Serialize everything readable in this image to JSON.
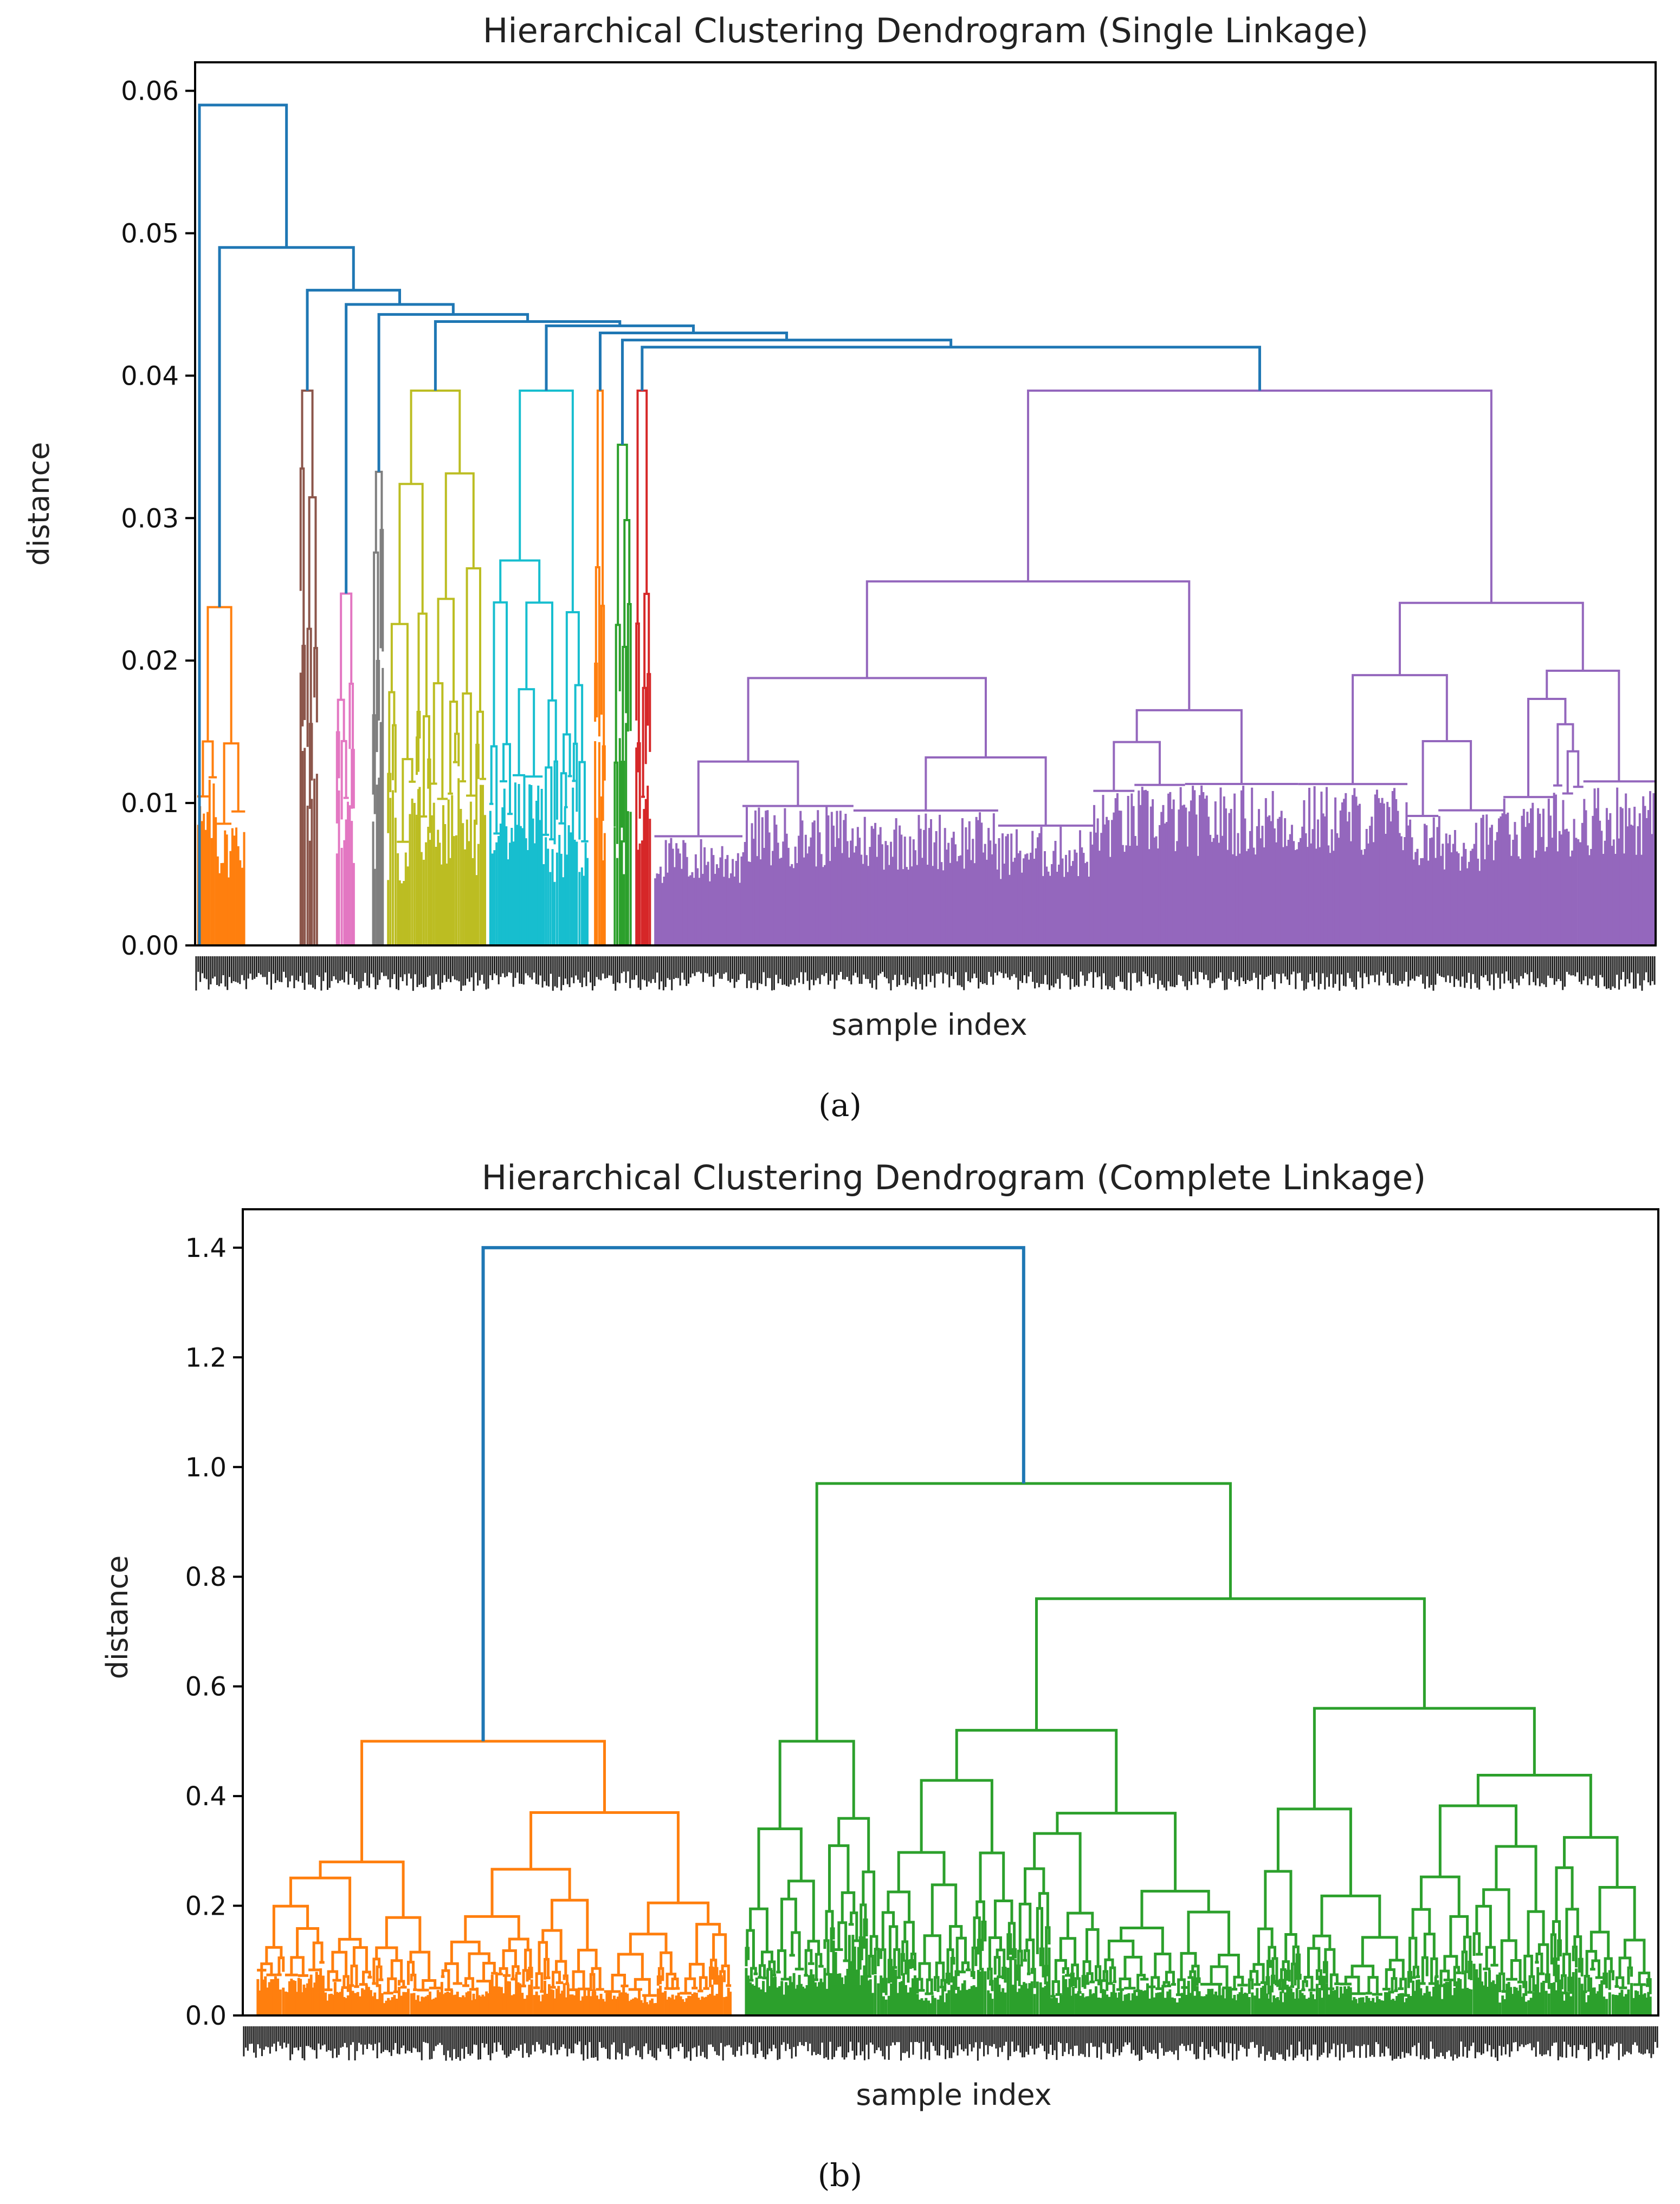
{
  "chart_data": [
    {
      "type": "dendrogram",
      "title": "Hierarchical Clustering Dendrogram (Single Linkage)",
      "xlabel": "sample index",
      "ylabel": "distance",
      "ylim": [
        0,
        0.062
      ],
      "yticks": [
        "0.00",
        "0.01",
        "0.02",
        "0.03",
        "0.04",
        "0.05",
        "0.06"
      ],
      "caption": "(a)",
      "root_height": 0.059,
      "clusters": [
        {
          "color": "#ff7f0e",
          "label": "orange",
          "merge_height": 0.025,
          "leaf_range": [
            0.0,
            0.035
          ]
        },
        {
          "color": "#8c564b",
          "label": "brown",
          "merge_height": 0.041,
          "leaf_range": [
            0.07,
            0.085
          ]
        },
        {
          "color": "#e377c2",
          "label": "pink",
          "merge_height": 0.026,
          "leaf_range": [
            0.095,
            0.11
          ]
        },
        {
          "color": "#7f7f7f",
          "label": "gray",
          "merge_height": 0.035,
          "leaf_range": [
            0.12,
            0.13
          ]
        },
        {
          "color": "#bcbd22",
          "label": "olive",
          "merge_height": 0.041,
          "leaf_range": [
            0.13,
            0.2
          ]
        },
        {
          "color": "#17becf",
          "label": "cyan",
          "merge_height": 0.041,
          "leaf_range": [
            0.2,
            0.27
          ]
        },
        {
          "color": "#ff7f0e",
          "label": "orange-small",
          "merge_height": 0.041,
          "leaf_range": [
            0.272,
            0.282
          ]
        },
        {
          "color": "#2ca02c",
          "label": "green",
          "merge_height": 0.037,
          "leaf_range": [
            0.285,
            0.3
          ]
        },
        {
          "color": "#d62728",
          "label": "red",
          "merge_height": 0.041,
          "leaf_range": [
            0.3,
            0.313
          ]
        },
        {
          "color": "#9467bd",
          "label": "purple",
          "merge_height": 0.041,
          "leaf_range": [
            0.313,
            1.0
          ]
        }
      ],
      "link_color_above_threshold": "#1f77b4"
    },
    {
      "type": "dendrogram",
      "title": "Hierarchical Clustering Dendrogram (Complete Linkage)",
      "xlabel": "sample index",
      "ylabel": "distance",
      "ylim": [
        0,
        1.47
      ],
      "yticks": [
        "0.0",
        "0.2",
        "0.4",
        "0.6",
        "0.8",
        "1.0",
        "1.2",
        "1.4"
      ],
      "caption": "(b)",
      "root_height": 1.4,
      "clusters": [
        {
          "color": "#ff7f0e",
          "label": "orange",
          "merge_height": 0.5,
          "leaf_range": [
            0.0,
            0.35
          ]
        },
        {
          "color": "#2ca02c",
          "label": "green",
          "merge_height": 0.97,
          "leaf_range": [
            0.35,
            1.0
          ]
        }
      ],
      "internal_merges_green": [
        0.97,
        0.76,
        0.56,
        0.52,
        0.5
      ],
      "internal_merges_orange": [
        0.5,
        0.37,
        0.28
      ],
      "link_color_above_threshold": "#1f77b4"
    }
  ]
}
